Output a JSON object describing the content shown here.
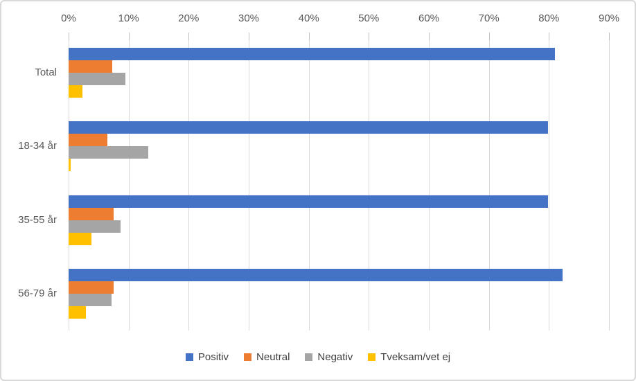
{
  "chart_data": {
    "type": "bar",
    "orientation": "horizontal",
    "title": "",
    "xlabel": "",
    "ylabel": "",
    "categories": [
      "Total",
      "18-34 år",
      "35-55 år",
      "56-79 år"
    ],
    "series": [
      {
        "name": "Positiv",
        "color": "#4472C4",
        "values": [
          81.0,
          79.8,
          79.9,
          82.3
        ]
      },
      {
        "name": "Neutral",
        "color": "#ED7D31",
        "values": [
          7.3,
          6.5,
          7.5,
          7.5
        ]
      },
      {
        "name": "Negativ",
        "color": "#A5A5A5",
        "values": [
          9.5,
          13.3,
          8.6,
          7.1
        ]
      },
      {
        "name": "Tveksam/vet ej",
        "color": "#FFC000",
        "values": [
          2.3,
          0.3,
          3.8,
          2.9
        ]
      }
    ],
    "x_axis": {
      "position": "top",
      "min": 0,
      "max": 90,
      "tick_step": 10,
      "tick_labels": [
        "0%",
        "10%",
        "20%",
        "30%",
        "40%",
        "50%",
        "60%",
        "70%",
        "80%",
        "90%"
      ]
    },
    "grid": true,
    "legend": {
      "position": "bottom",
      "entries": [
        "Positiv",
        "Neutral",
        "Negativ",
        "Tveksam/vet ej"
      ]
    },
    "colors": {
      "gridline": "#D9D9D9",
      "tickmark": "#BFBFBF",
      "axis_text": "#595959",
      "legend_text": "#404040",
      "frame_border": "#D9D9D9"
    }
  }
}
